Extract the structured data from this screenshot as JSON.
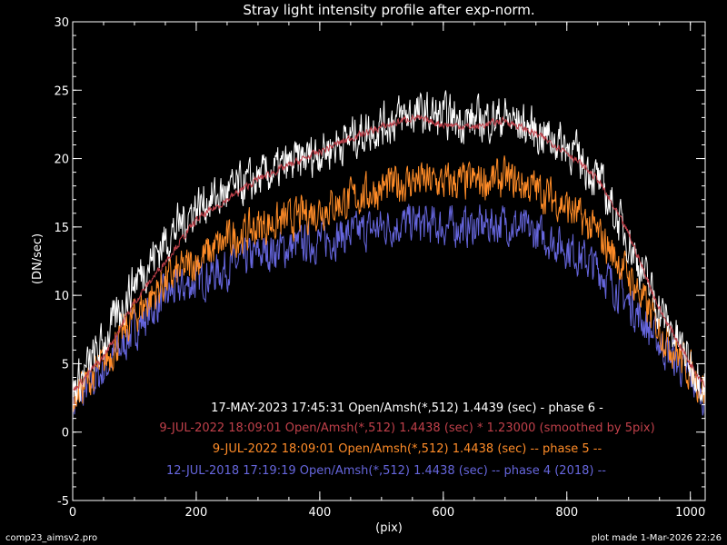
{
  "chart_data": {
    "type": "line",
    "title": "Stray light intensity profile after exp-norm.",
    "xlabel": "(pix)",
    "ylabel": "(DN/sec)",
    "xlim": [
      0,
      1024
    ],
    "ylim": [
      -5,
      30
    ],
    "x_ticks": [
      0,
      200,
      400,
      600,
      800,
      1000
    ],
    "y_ticks": [
      -5,
      0,
      5,
      10,
      15,
      20,
      25,
      30
    ],
    "x_minor_step": 50,
    "y_minor_step": 1,
    "grid": false,
    "legend_position": "bottom-center",
    "series": [
      {
        "name": "17-MAY-2023 17:45:31   Open/Amsh(*,512)   1.4439 (sec) - phase 6  -",
        "color": "#ffffff",
        "noise": 0.9,
        "x": [
          0,
          50,
          100,
          150,
          200,
          250,
          300,
          350,
          400,
          450,
          500,
          550,
          600,
          650,
          700,
          750,
          800,
          850,
          900,
          950,
          1000,
          1024
        ],
        "y": [
          3,
          6.5,
          11,
          14,
          16.5,
          17.5,
          18.5,
          19.5,
          20.5,
          21.5,
          22.5,
          23.3,
          23,
          22.8,
          23,
          22,
          21,
          18.5,
          14,
          9,
          5,
          3.5
        ]
      },
      {
        "name": "9-JUL-2022 18:09:01   Open/Amsh(*,512)   1.4438 (sec) * 1.23000 (smoothed by 5pix)",
        "color": "#c0404a",
        "noise": 0.15,
        "x": [
          0,
          50,
          100,
          150,
          200,
          250,
          300,
          350,
          400,
          450,
          500,
          550,
          600,
          650,
          700,
          750,
          800,
          850,
          900,
          950,
          1000,
          1024
        ],
        "y": [
          3,
          5.5,
          9.5,
          12.5,
          15.5,
          17,
          18.5,
          19.5,
          20.5,
          21.5,
          22.3,
          23,
          22.5,
          22.3,
          22.8,
          21.8,
          20.5,
          18.5,
          14.5,
          9,
          5,
          3.5
        ]
      },
      {
        "name": "9-JUL-2022 18:09:01   Open/Amsh(*,512)   1.4438 (sec) -- phase 5 --",
        "color": "#ff8c28",
        "noise": 0.8,
        "x": [
          0,
          50,
          100,
          150,
          200,
          250,
          300,
          350,
          400,
          450,
          500,
          550,
          600,
          650,
          700,
          750,
          800,
          850,
          900,
          950,
          1000,
          1024
        ],
        "y": [
          2.5,
          5,
          8.5,
          11,
          12.5,
          14,
          15,
          15.5,
          16.3,
          17,
          17.8,
          18.4,
          18.2,
          18.3,
          18.5,
          17.8,
          16.5,
          14.5,
          11.5,
          7.5,
          4.5,
          3
        ]
      },
      {
        "name": "12-JUL-2018 17:19:19   Open/Amsh(*,512)   1.4438 (sec) -- phase 4 (2018) --",
        "color": "#6666dd",
        "noise": 0.8,
        "x": [
          0,
          50,
          100,
          150,
          200,
          250,
          300,
          350,
          400,
          450,
          500,
          550,
          600,
          650,
          700,
          750,
          800,
          850,
          900,
          950,
          1000,
          1024
        ],
        "y": [
          2,
          4.5,
          7.5,
          10,
          11,
          12,
          13,
          13.5,
          14,
          14.5,
          15,
          15.3,
          15,
          15,
          15.3,
          14.5,
          13.5,
          12,
          9.5,
          6.5,
          4,
          2.5
        ]
      }
    ]
  },
  "footer": {
    "left": "comp23_aimsv2.pro",
    "right": "plot made  1-Mar-2026 22:26"
  }
}
